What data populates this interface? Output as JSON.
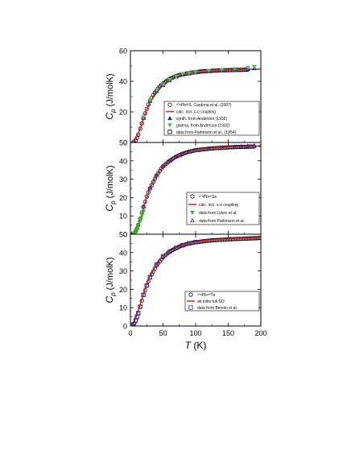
{
  "chart_data": [
    {
      "type": "scatter",
      "ylabel_main": "C",
      "ylabel_sub": "p",
      "ylabel_unit": " (J/molK)",
      "ylim": [
        0,
        60
      ],
      "yticks": [
        "0",
        "20",
        "40",
        "60"
      ],
      "xlim": [
        0,
        200
      ],
      "legend_position": "center-right",
      "legend": [
        {
          "symbol": "circle-open",
          "color": "#000000",
          "label": "²⁰⁸Pb³²S, Cardona et al. (2007)"
        },
        {
          "symbol": "line",
          "color": "#e0202a",
          "label": "calc. incl. s-o coupling"
        },
        {
          "symbol": "triangle-up",
          "color": "#1a2fb4",
          "label": "synth. from Anderson (1932)"
        },
        {
          "symbol": "triangle-down",
          "color": "#4cc24c",
          "label": "galena, from Anderson (1932)"
        },
        {
          "symbol": "square-open",
          "color": "#000000",
          "label": "data from Parkinson et al., (1954)"
        }
      ],
      "series": [
        {
          "name": "²⁰⁸Pb³²S, Cardona et al. (2007)",
          "x": [
            5,
            8,
            10,
            12,
            15,
            20,
            25,
            30,
            35,
            40,
            45,
            50,
            60,
            70,
            80,
            90,
            100,
            110,
            120,
            130,
            140,
            150,
            160,
            170,
            180
          ],
          "y": [
            0.4,
            1.5,
            3,
            5,
            9,
            16,
            22,
            27.5,
            31,
            34,
            36.5,
            38.5,
            41.5,
            43.5,
            44.5,
            45.5,
            46,
            46.5,
            46.8,
            47,
            47.2,
            47.3,
            47.4,
            47.5,
            47.6
          ]
        },
        {
          "name": "calc. incl. s-o coupling",
          "x": [
            0,
            5,
            10,
            15,
            20,
            25,
            30,
            40,
            50,
            60,
            70,
            80,
            100,
            120,
            140,
            160,
            180,
            200
          ],
          "y": [
            0,
            0.6,
            3.5,
            9,
            15.5,
            21.5,
            26.5,
            33.5,
            38,
            41,
            43,
            44.3,
            45.8,
            46.6,
            47.2,
            47.5,
            47.8,
            48
          ]
        },
        {
          "name": "synth. from Anderson (1932)",
          "x": [
            20,
            30,
            40,
            50,
            60,
            70,
            80,
            90,
            100,
            120,
            140,
            160,
            180,
            190
          ],
          "y": [
            16,
            27,
            33.5,
            37.5,
            40.5,
            43,
            44.5,
            45,
            45.8,
            46.5,
            47,
            47.5,
            48,
            48.5
          ]
        },
        {
          "name": "galena, from Anderson (1932)",
          "x": [
            20,
            30,
            40,
            50,
            60,
            70,
            80,
            90,
            100,
            120,
            140,
            160,
            180,
            190
          ],
          "y": [
            16.5,
            27.5,
            34,
            38,
            41,
            43.2,
            44.8,
            45.4,
            46,
            47,
            47.5,
            48,
            48.8,
            49.5
          ]
        }
      ]
    },
    {
      "type": "scatter",
      "ylabel_main": "C",
      "ylabel_sub": "p",
      "ylabel_unit": " (J/molK)",
      "ylim": [
        0,
        50
      ],
      "yticks": [
        "0",
        "10",
        "20",
        "30",
        "40",
        "50"
      ],
      "xlim": [
        0,
        200
      ],
      "legend_position": "center-right",
      "legend": [
        {
          "symbol": "circle-open",
          "color": "#000000",
          "label": "²⁰⁸Pb⁸⁰Se"
        },
        {
          "symbol": "line",
          "color": "#e0202a",
          "label": "calc. incl. s-o coupling"
        },
        {
          "symbol": "triangle-down",
          "color": "#2db82d",
          "label": "data from Lykov et al."
        },
        {
          "symbol": "triangle-up-open",
          "color": "#1a2fb4",
          "label": "data from Parkinson et al."
        }
      ],
      "series": [
        {
          "name": "²⁰⁸Pb⁸⁰Se",
          "x": [
            3,
            5,
            8,
            10,
            12,
            15,
            20,
            25,
            30,
            40,
            50,
            60,
            70,
            80,
            90,
            100,
            110,
            120,
            130,
            140,
            150,
            160,
            170,
            180,
            190
          ],
          "y": [
            0.1,
            0.4,
            1.5,
            3,
            5,
            8.5,
            15,
            20.5,
            25,
            32,
            37,
            40,
            42.3,
            43.8,
            45,
            45.8,
            46.2,
            46.6,
            46.9,
            47.1,
            47.3,
            47.5,
            47.6,
            47.7,
            47.8
          ]
        },
        {
          "name": "calc. incl. s-o coupling",
          "x": [
            0,
            5,
            10,
            15,
            20,
            25,
            30,
            40,
            50,
            60,
            70,
            80,
            100,
            120,
            140,
            160,
            180,
            200
          ],
          "y": [
            0,
            0.5,
            3,
            8,
            14.5,
            20,
            25,
            32,
            36.8,
            40,
            42.3,
            44,
            45.8,
            46.7,
            47.2,
            47.6,
            47.9,
            48.1
          ]
        },
        {
          "name": "data from Lykov et al.",
          "x": [
            5,
            8,
            10,
            12,
            14,
            16,
            18,
            20
          ],
          "y": [
            0.5,
            1.5,
            3,
            4.5,
            6.5,
            8.5,
            10.5,
            12.5
          ]
        },
        {
          "name": "data from Parkinson et al.",
          "x": [
            20,
            30,
            40,
            50,
            60,
            70,
            80,
            90,
            100,
            120,
            140,
            160,
            170,
            180,
            190,
            200
          ],
          "y": [
            15,
            25,
            32,
            37,
            40,
            42.3,
            44,
            45,
            45.8,
            46.8,
            47.2,
            47.7,
            47.9,
            48.1,
            48.3,
            48.4
          ]
        }
      ]
    },
    {
      "type": "scatter",
      "ylabel_main": "C",
      "ylabel_sub": "p",
      "ylabel_unit": " (J/molK)",
      "ylim": [
        0,
        50
      ],
      "yticks": [
        "0",
        "10",
        "20",
        "30",
        "40",
        "50"
      ],
      "xlim": [
        0,
        200
      ],
      "xticks": [
        "0",
        "50",
        "100",
        "150",
        "200"
      ],
      "xlabel_main": "T",
      "xlabel_unit": " (K)",
      "legend_position": "lower-right",
      "legend": [
        {
          "symbol": "circle-open",
          "color": "#000000",
          "label": "²⁰⁸Pb¹³⁰Te"
        },
        {
          "symbol": "line",
          "color": "#e0202a",
          "label": "ab initio full SO"
        },
        {
          "symbol": "square-open",
          "color": "#1a2fb4",
          "label": "data from Bevolo et al."
        }
      ],
      "series": [
        {
          "name": "²⁰⁸Pb¹³⁰Te",
          "x": [
            2,
            4,
            6,
            8,
            10,
            12,
            15,
            20,
            25,
            30,
            40,
            50,
            60,
            70,
            80,
            90,
            100,
            110,
            120,
            130,
            140,
            150,
            160,
            170,
            180,
            190,
            200
          ],
          "y": [
            0.1,
            0.5,
            1.5,
            3,
            5,
            7,
            10.5,
            17,
            22,
            26.5,
            33,
            37.5,
            40.5,
            42.5,
            44,
            45,
            45.6,
            46.1,
            46.5,
            46.8,
            47,
            47.2,
            47.4,
            47.5,
            47.7,
            47.8,
            48
          ]
        },
        {
          "name": "ab initio full SO",
          "x": [
            0,
            3,
            6,
            10,
            15,
            20,
            25,
            30,
            40,
            50,
            60,
            70,
            80,
            100,
            120,
            140,
            160,
            180,
            200
          ],
          "y": [
            0,
            0.4,
            2.5,
            6,
            11.5,
            17.5,
            22.5,
            27,
            33.5,
            37.8,
            40.7,
            42.7,
            44.1,
            45.8,
            46.7,
            47.3,
            47.7,
            47.9,
            48.1
          ]
        },
        {
          "name": "data from Bevolo et al.",
          "x": [
            3,
            5,
            8,
            10,
            12,
            15,
            20,
            25,
            30,
            40,
            50,
            60,
            70,
            80,
            90,
            100
          ],
          "y": [
            0.3,
            1,
            3,
            5,
            7,
            10.5,
            17,
            22,
            26.5,
            33.5,
            38,
            40.5,
            42.5,
            44,
            45,
            45.7
          ]
        }
      ]
    }
  ]
}
